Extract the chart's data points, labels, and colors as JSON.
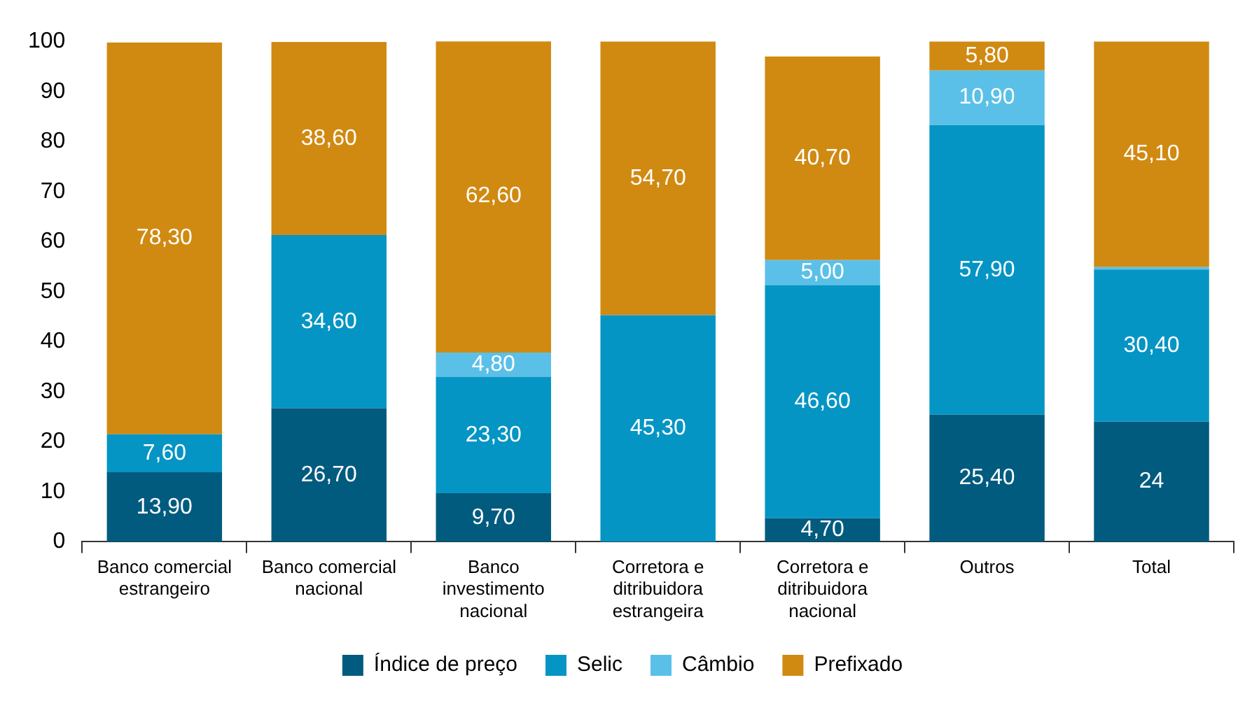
{
  "chart_data": {
    "type": "bar",
    "stacked": true,
    "categories": [
      "Banco comercial estrangeiro",
      "Banco comercial nacional",
      "Banco investimento nacional",
      "Corretora e ditribuidora estrangeira",
      "Corretora e ditribuidora nacional",
      "Outros",
      "Total"
    ],
    "series": [
      {
        "name": "Índice de preço",
        "color": "#005b7f",
        "values": [
          13.9,
          26.7,
          9.7,
          null,
          4.7,
          25.4,
          24
        ],
        "value_labels": [
          "13,90",
          "26,70",
          "9,70",
          null,
          "4,70",
          "25,40",
          "24"
        ]
      },
      {
        "name": "Selic",
        "color": "#0595c4",
        "values": [
          7.6,
          34.6,
          23.3,
          45.3,
          46.6,
          57.9,
          30.4
        ],
        "value_labels": [
          "7,60",
          "34,60",
          "23,30",
          "45,30",
          "46,60",
          "57,90",
          "30,40"
        ]
      },
      {
        "name": "Câmbio",
        "color": "#5bc0e8",
        "values": [
          null,
          null,
          4.8,
          null,
          5.0,
          10.9,
          0.5
        ],
        "value_labels": [
          null,
          null,
          "4,80",
          null,
          "5,00",
          "10,90",
          null
        ]
      },
      {
        "name": "Prefixado",
        "color": "#d08a12",
        "values": [
          78.3,
          38.6,
          62.6,
          54.7,
          40.7,
          5.8,
          45.1
        ],
        "value_labels": [
          "78,30",
          "38,60",
          "62,60",
          "54,70",
          "40,70",
          "5,80",
          "45,10"
        ]
      }
    ],
    "ylim": [
      0,
      100
    ],
    "yticks": [
      0,
      10,
      20,
      30,
      40,
      50,
      60,
      70,
      80,
      90,
      100
    ],
    "legend": "bottom"
  }
}
